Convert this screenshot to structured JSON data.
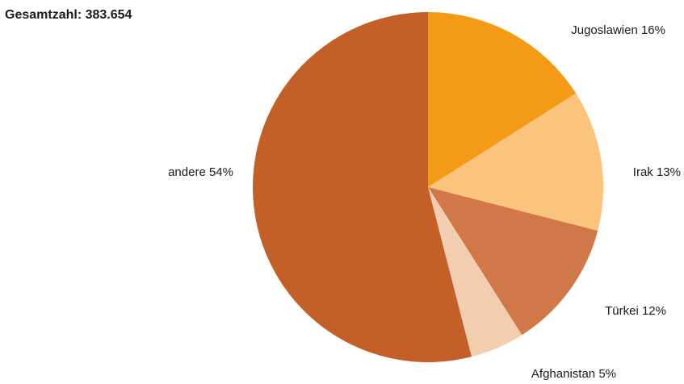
{
  "total": {
    "label": "Gesamtzahl: 383.654"
  },
  "chart_data": {
    "type": "pie",
    "title": "",
    "start_angle_deg": 0,
    "direction": "clockwise",
    "slices": [
      {
        "name": "Jugoslawien",
        "value": 16,
        "label": "Jugoslawien 16%",
        "color": "#f39a16"
      },
      {
        "name": "Irak",
        "value": 13,
        "label": "Irak 13%",
        "color": "#fbc37c"
      },
      {
        "name": "Türkei",
        "value": 12,
        "label": "Türkei 12%",
        "color": "#d07848"
      },
      {
        "name": "Afghanistan",
        "value": 5,
        "label": "Afghanistan 5%",
        "color": "#f2cdb0"
      },
      {
        "name": "andere",
        "value": 54,
        "label": "andere 54%",
        "color": "#c26028"
      }
    ]
  }
}
